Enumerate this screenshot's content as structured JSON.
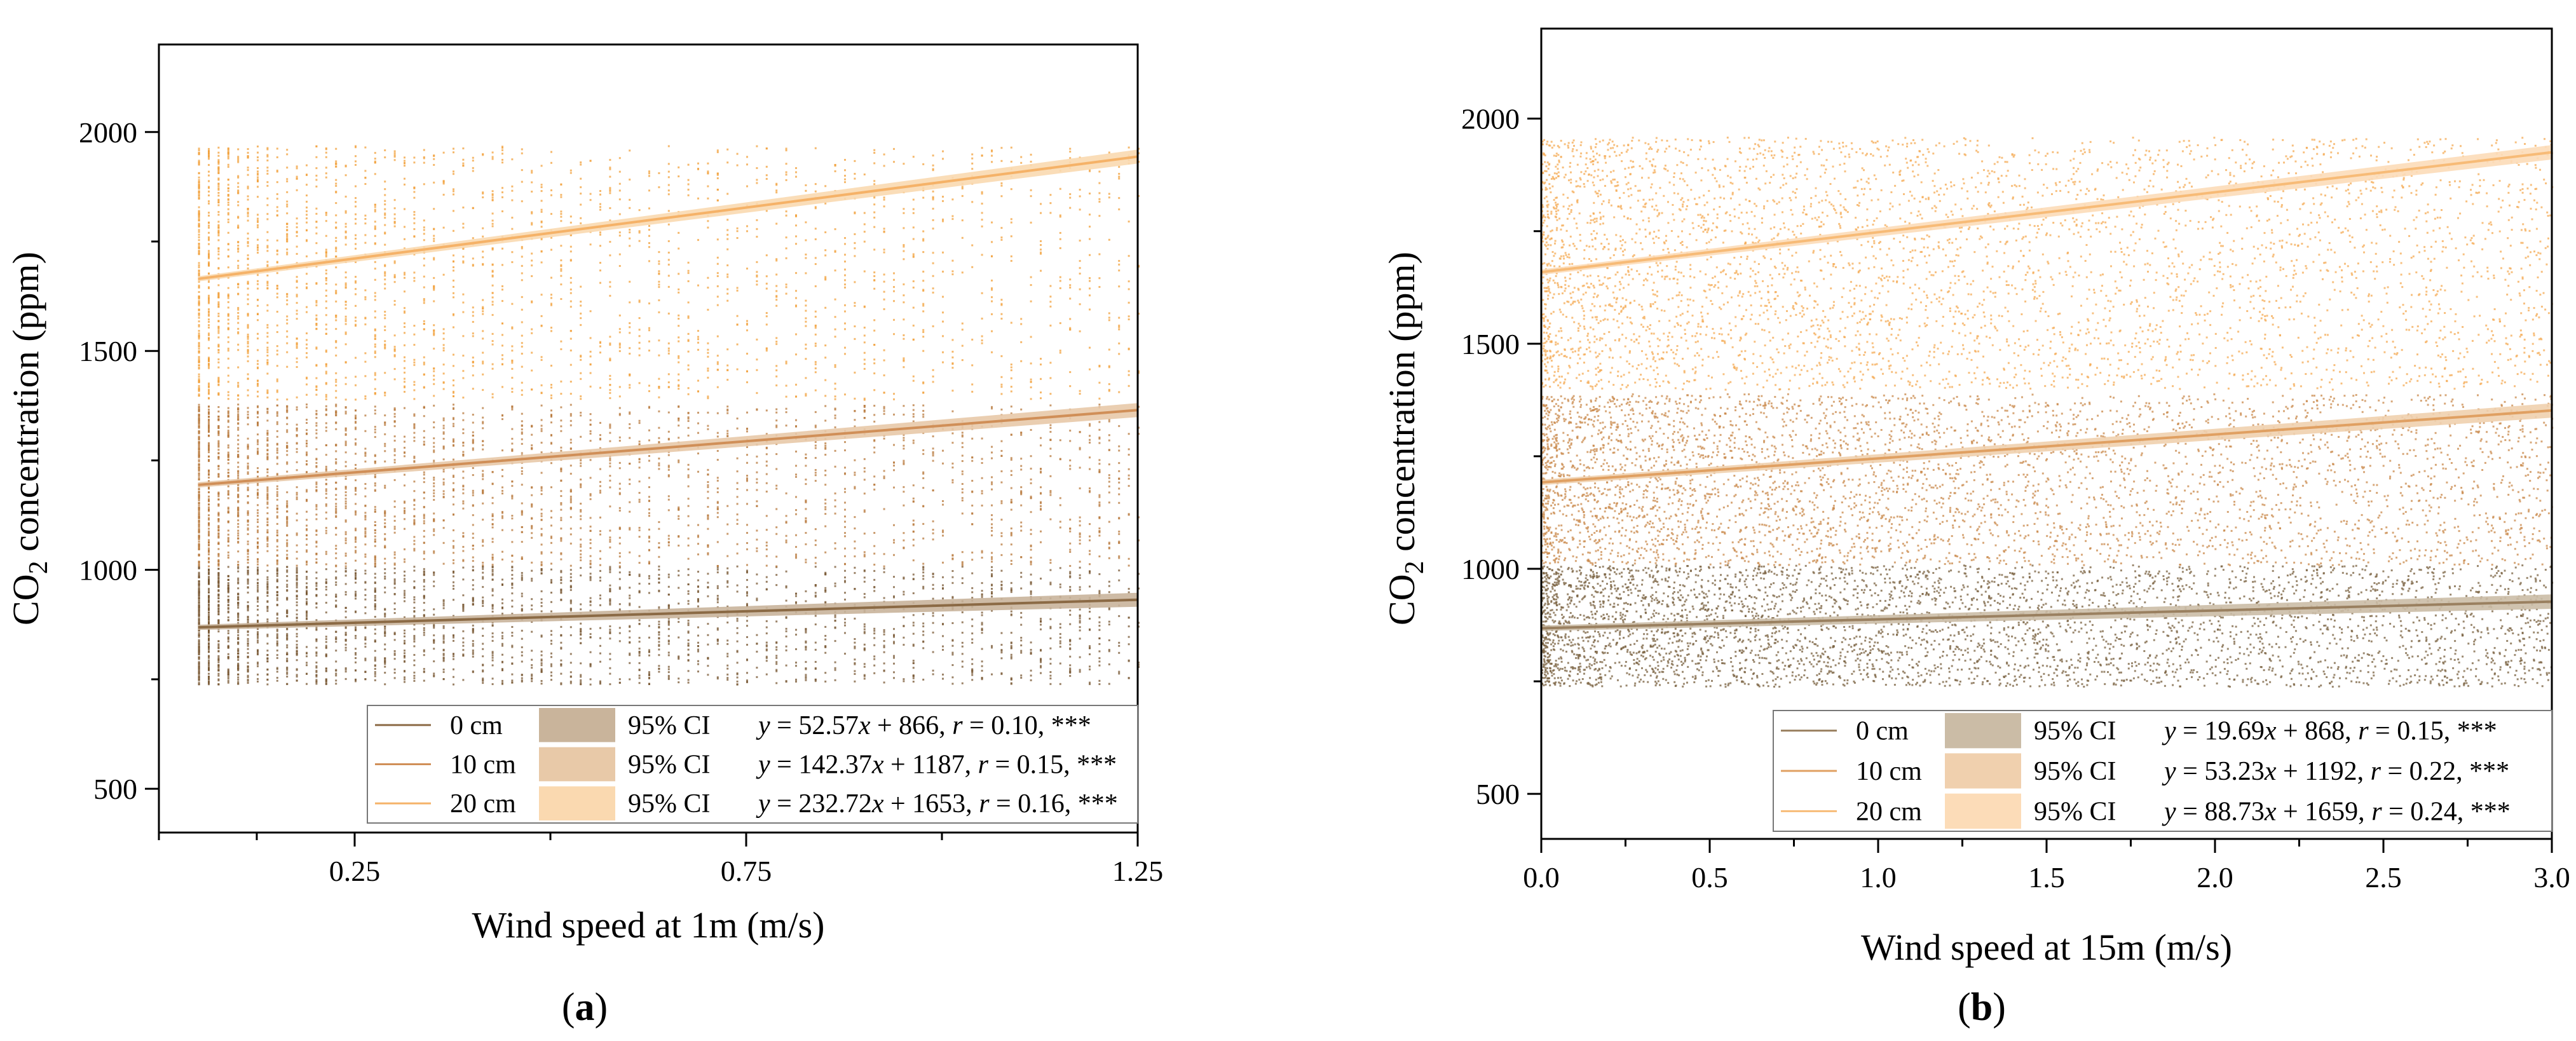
{
  "chart_data": [
    {
      "type": "scatter",
      "panel": "(a)",
      "panel_letter": "a",
      "xlabel": "Wind speed at 1m (m/s)",
      "ylabel": "CO2 concentration (ppm)",
      "ylabel_main": "CO",
      "ylabel_sub": "2",
      "ylabel_rest": " concentration (ppm)",
      "x_ticks": [
        0.25,
        0.75,
        1.25
      ],
      "x_tick_labels": [
        "0.25",
        "0.75",
        "1.25"
      ],
      "xlim": [
        0.0,
        1.25
      ],
      "y_ticks": [
        500,
        1000,
        1500,
        2000
      ],
      "y_tick_labels": [
        "500",
        "1000",
        "1500",
        "2000"
      ],
      "ylim": [
        400,
        2200
      ],
      "grid": false,
      "legend_position": "bottom-right",
      "series": [
        {
          "name": "0 cm",
          "ci_label": "95% CI",
          "equation_y": "y",
          "equation_rest": " = 52.57",
          "equation_x": "x",
          "equation_tail": " + 866, ",
          "r_letter": "r",
          "r_rest": " = 0.10, ***",
          "slope": 52.57,
          "intercept": 866,
          "r": 0.1,
          "significance": "***",
          "y_min": 740,
          "y_max": 1010,
          "color": "#7a5a36",
          "line_color": "#8b6a45",
          "ci_color": "#c9b49b"
        },
        {
          "name": "10 cm",
          "ci_label": "95% CI",
          "equation_y": "y",
          "equation_rest": " = 142.37",
          "equation_x": "x",
          "equation_tail": " + 1187, ",
          "r_letter": "r",
          "r_rest": " = 0.15, ***",
          "slope": 142.37,
          "intercept": 1187,
          "r": 0.15,
          "significance": "***",
          "y_min": 1010,
          "y_max": 1380,
          "color": "#b87a3e",
          "line_color": "#d08f58",
          "ci_color": "#e8c9a8"
        },
        {
          "name": "20 cm",
          "ci_label": "95% CI",
          "equation_y": "y",
          "equation_rest": " = 232.72",
          "equation_x": "x",
          "equation_tail": " + 1653, ",
          "r_letter": "r",
          "r_rest": " = 0.16, ***",
          "slope": 232.72,
          "intercept": 1653,
          "r": 0.16,
          "significance": "***",
          "y_min": 1390,
          "y_max": 1970,
          "color": "#f2a23e",
          "line_color": "#f5b268",
          "ci_color": "#fad9b0"
        }
      ]
    },
    {
      "type": "scatter",
      "panel": "(b)",
      "panel_letter": "b",
      "xlabel": "Wind speed at 15m (m/s)",
      "ylabel": "CO2 concentration (ppm)",
      "ylabel_main": "CO",
      "ylabel_sub": "2",
      "ylabel_rest": " concentration (ppm)",
      "x_ticks": [
        0.0,
        0.5,
        1.0,
        1.5,
        2.0,
        2.5,
        3.0
      ],
      "x_tick_labels": [
        "0.0",
        "0.5",
        "1.0",
        "1.5",
        "2.0",
        "2.5",
        "3.0"
      ],
      "xlim": [
        0.0,
        3.0
      ],
      "y_ticks": [
        500,
        1000,
        1500,
        2000
      ],
      "y_tick_labels": [
        "500",
        "1000",
        "1500",
        "2000"
      ],
      "ylim": [
        400,
        2200
      ],
      "grid": false,
      "legend_position": "bottom-right",
      "series": [
        {
          "name": "0 cm",
          "ci_label": "95% CI",
          "equation_y": "y",
          "equation_rest": " = 19.69",
          "equation_x": "x",
          "equation_tail": " + 868, ",
          "r_letter": "r",
          "r_rest": " = 0.15, ***",
          "slope": 19.69,
          "intercept": 868,
          "r": 0.15,
          "significance": "***",
          "y_min": 740,
          "y_max": 1010,
          "color": "#7a6240",
          "line_color": "#9a8060",
          "ci_color": "#cbbca6"
        },
        {
          "name": "10 cm",
          "ci_label": "95% CI",
          "equation_y": "y",
          "equation_rest": " = 53.23",
          "equation_x": "x",
          "equation_tail": " + 1192, ",
          "r_letter": "r",
          "r_rest": " = 0.22, ***",
          "slope": 53.23,
          "intercept": 1192,
          "r": 0.22,
          "significance": "***",
          "y_min": 1010,
          "y_max": 1390,
          "color": "#c98a4c",
          "line_color": "#e0a062",
          "ci_color": "#f0d0ae"
        },
        {
          "name": "20 cm",
          "ci_label": "95% CI",
          "equation_y": "y",
          "equation_rest": " = 88.73",
          "equation_x": "x",
          "equation_tail": " + 1659, ",
          "r_letter": "r",
          "r_rest": " = 0.24, ***",
          "slope": 88.73,
          "intercept": 1659,
          "r": 0.24,
          "significance": "***",
          "y_min": 1400,
          "y_max": 1960,
          "color": "#f4ab55",
          "line_color": "#f7bb77",
          "ci_color": "#fcdcb8"
        }
      ]
    }
  ]
}
